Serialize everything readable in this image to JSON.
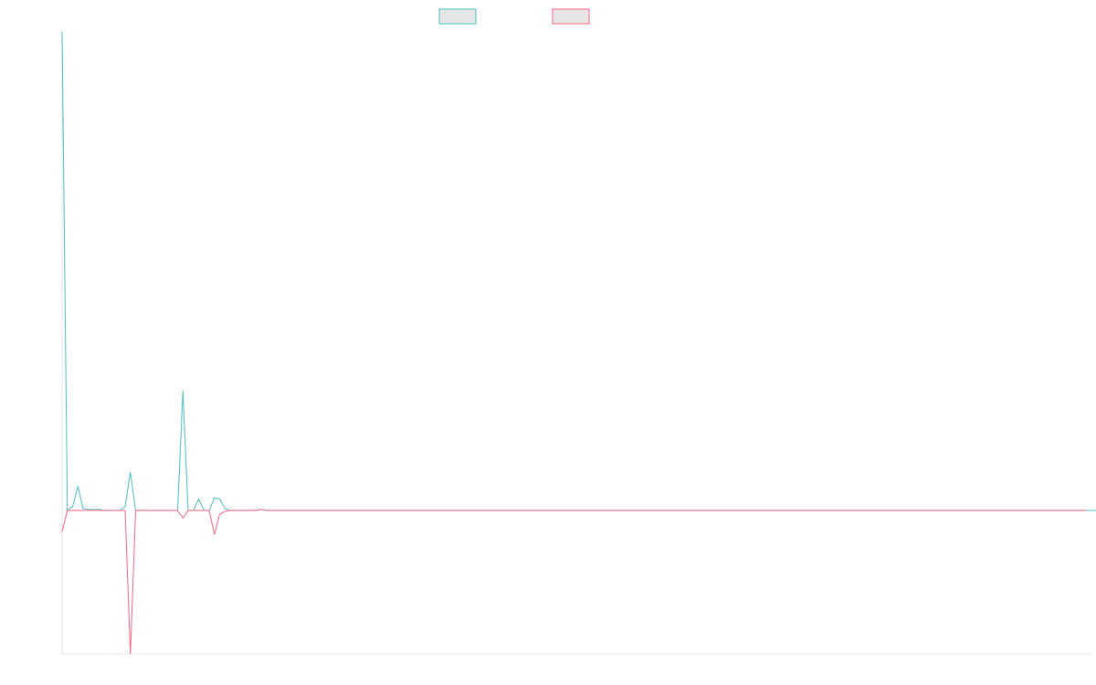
{
  "chart_data": {
    "type": "line",
    "title": "",
    "xlabel": "",
    "ylabel": "",
    "x_range": [
      0,
      196
    ],
    "ylim": [
      -1.5,
      5
    ],
    "grid": false,
    "legend_placement": "top-center",
    "series": [
      {
        "color": "#4bc0c0",
        "values": [
          5.0,
          0.0,
          0.04,
          0.25,
          0.02,
          0.01,
          0.01,
          0.01,
          0.0,
          0.0,
          0.0,
          0.0,
          0.04,
          0.4,
          0.0,
          0.0,
          0.0,
          0.0,
          0.0,
          0.0,
          0.0,
          0.0,
          0.0,
          1.25,
          0.0,
          0.0,
          0.12,
          0.0,
          0.0,
          0.13,
          0.12,
          0.02,
          0.0,
          0.0,
          0.0,
          0.0,
          0.0,
          0.0,
          0.01,
          0.0,
          0.0,
          0.0,
          0.0,
          0.0,
          0.0,
          0.0,
          0.0,
          0.0,
          0.0,
          0.0,
          0.0,
          0.0,
          0.0,
          0.0,
          0.0,
          0.0,
          0.0,
          0.0,
          0.0,
          0.0,
          0.0,
          0.0,
          0.0,
          0.0,
          0.0,
          0.0,
          0.0,
          0.0,
          0.0,
          0.0,
          0.0,
          0.0,
          0.0,
          0.0,
          0.0,
          0.0,
          0.0,
          0.0,
          0.0,
          0.0,
          0.0,
          0.0,
          0.0,
          0.0,
          0.0,
          0.0,
          0.0,
          0.0,
          0.0,
          0.0,
          0.0,
          0.0,
          0.0,
          0.0,
          0.0,
          0.0,
          0.0,
          0.0,
          0.0,
          0.0,
          0.0,
          0.0,
          0.0,
          0.0,
          0.0,
          0.0,
          0.0,
          0.0,
          0.0,
          0.0,
          0.0,
          0.0,
          0.0,
          0.0,
          0.0,
          0.0,
          0.0,
          0.0,
          0.0,
          0.0,
          0.0,
          0.0,
          0.0,
          0.0,
          0.0,
          0.0,
          0.0,
          0.0,
          0.0,
          0.0,
          0.0,
          0.0,
          0.0,
          0.0,
          0.0,
          0.0,
          0.0,
          0.0,
          0.0,
          0.0,
          0.0,
          0.0,
          0.0,
          0.0,
          0.0,
          0.0,
          0.0,
          0.0,
          0.0,
          0.0,
          0.0,
          0.0,
          0.0,
          0.0,
          0.0,
          0.0,
          0.0,
          0.0,
          0.0,
          0.0,
          0.0,
          0.0,
          0.0,
          0.0,
          0.0,
          0.0,
          0.0,
          0.0,
          0.0,
          0.0,
          0.0,
          0.0,
          0.0,
          0.0,
          0.0,
          0.0,
          0.0,
          0.0,
          0.0,
          0.0,
          0.0,
          0.0,
          0.0,
          0.0,
          0.0,
          0.0,
          0.0,
          0.0,
          0.0,
          0.0,
          0.0,
          0.0,
          0.0,
          0.0,
          0.0,
          0.0,
          0.0,
          0.0,
          0.0,
          0.0,
          0.0
        ]
      },
      {
        "color": "#ff6384",
        "values": [
          -0.22,
          0.0,
          0.0,
          0.0,
          0.0,
          0.0,
          0.0,
          0.0,
          0.0,
          0.0,
          0.0,
          0.0,
          0.0,
          -1.5,
          0.0,
          0.0,
          0.0,
          0.0,
          0.0,
          0.0,
          0.0,
          0.0,
          0.0,
          -0.08,
          0.0,
          0.0,
          0.0,
          0.0,
          0.0,
          -0.25,
          -0.04,
          -0.01,
          0.0,
          0.0,
          0.0,
          0.0,
          0.0,
          0.0,
          0.01,
          0.0,
          0.0,
          0.0,
          0.0,
          0.0,
          0.0,
          0.0,
          0.0,
          0.0,
          0.0,
          0.0,
          0.0,
          0.0,
          0.0,
          0.0,
          0.0,
          0.0,
          0.0,
          0.0,
          0.0,
          0.0,
          0.0,
          0.0,
          0.0,
          0.0,
          0.0,
          0.0,
          0.0,
          0.0,
          0.0,
          0.0,
          0.0,
          0.0,
          0.0,
          0.0,
          0.0,
          0.0,
          0.0,
          0.0,
          0.0,
          0.0,
          0.0,
          0.0,
          0.0,
          0.0,
          0.0,
          0.0,
          0.0,
          0.0,
          0.0,
          0.0,
          0.0,
          0.0,
          0.0,
          0.0,
          0.0,
          0.0,
          0.0,
          0.0,
          0.0,
          0.0,
          0.0,
          0.0,
          0.0,
          0.0,
          0.0,
          0.0,
          0.0,
          0.0,
          0.0,
          0.0,
          0.0,
          0.0,
          0.0,
          0.0,
          0.0,
          0.0,
          0.0,
          0.0,
          0.0,
          0.0,
          0.0,
          0.0,
          0.0,
          0.0,
          0.0,
          0.0,
          0.0,
          0.0,
          0.0,
          0.0,
          0.0,
          0.0,
          0.0,
          0.0,
          0.0,
          0.0,
          0.0,
          0.0,
          0.0,
          0.0,
          0.0,
          0.0,
          0.0,
          0.0,
          0.0,
          0.0,
          0.0,
          0.0,
          0.0,
          0.0,
          0.0,
          0.0,
          0.0,
          0.0,
          0.0,
          0.0,
          0.0,
          0.0,
          0.0,
          0.0,
          0.0,
          0.0,
          0.0,
          0.0,
          0.0,
          0.0,
          0.0,
          0.0,
          0.0,
          0.0,
          0.0,
          0.0,
          0.0,
          0.0,
          0.0,
          0.0,
          0.0,
          0.0,
          0.0,
          0.0,
          0.0,
          0.0,
          0.0,
          0.0,
          0.0,
          0.0,
          0.0,
          0.0,
          0.0,
          0.0,
          0.0,
          0.0,
          0.0,
          0.0,
          0.0,
          0.0
        ]
      }
    ]
  }
}
